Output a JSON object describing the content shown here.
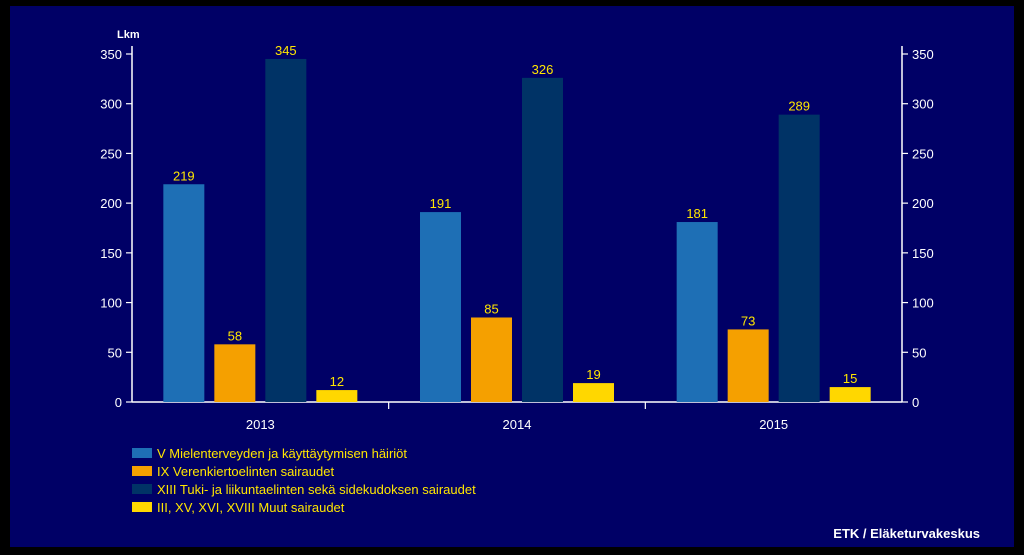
{
  "chart_data": {
    "type": "bar",
    "categories": [
      "2013",
      "2014",
      "2015"
    ],
    "series": [
      {
        "name": "V Mielenterveyden ja käyttäytymisen häiriöt",
        "values": [
          219,
          191,
          181
        ],
        "color": "#1e6fb5"
      },
      {
        "name": "IX Verenkiertoelinten sairaudet",
        "values": [
          58,
          85,
          73
        ],
        "color": "#f5a000"
      },
      {
        "name": "XIII Tuki- ja liikuntaelinten sekä sidekudoksen sairaudet",
        "values": [
          345,
          326,
          289
        ],
        "color": "#003366"
      },
      {
        "name": "III, XV, XVI, XVIII Muut sairaudet",
        "values": [
          12,
          19,
          15
        ],
        "color": "#ffd700"
      }
    ],
    "ylabel": "Lkm",
    "ylim": [
      0,
      350
    ],
    "yticks": [
      0,
      50,
      100,
      150,
      200,
      250,
      300,
      350
    ],
    "right_axis": true,
    "grid": false,
    "legend_position": "bottom-left",
    "source": "ETK / Eläketurvakeskus",
    "colors": {
      "background": "#000066",
      "axis": "#ffffff",
      "label": "#ffe600"
    }
  }
}
